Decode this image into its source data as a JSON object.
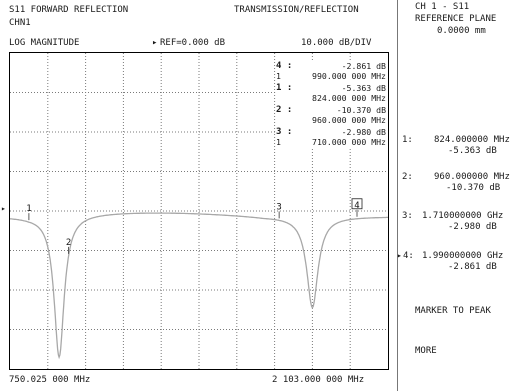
{
  "header": {
    "measurement_title": "S11 FORWARD REFLECTION",
    "mode": "TRANSMISSION/REFLECTION",
    "channel": "CHN1",
    "format": "LOG MAGNITUDE",
    "reference_marker": "▸",
    "reference": "REF=0.000 dB",
    "scale": "10.000 dB/DIV"
  },
  "marker_table": [
    {
      "id": "4 :",
      "value": "-2.861 dB",
      "prefix": "1",
      "freq": "990.000 000 MHz"
    },
    {
      "id": "1 :",
      "value": "-5.363 dB",
      "prefix": "",
      "freq": "824.000 000 MHz"
    },
    {
      "id": "2 :",
      "value": "-10.370 dB",
      "prefix": "",
      "freq": "960.000 000 MHz"
    },
    {
      "id": "3 :",
      "value": "-2.980 dB",
      "prefix": "1",
      "freq": "710.000 000 MHz"
    }
  ],
  "plot": {
    "start_freq": "750.025 000 MHz",
    "stop_freq": "2 103.000 000 MHz",
    "reference_arrow": "▸",
    "marker_labels": [
      {
        "label": "1",
        "frac": 0.05,
        "active": false
      },
      {
        "label": "2",
        "frac": 0.155,
        "active": false
      },
      {
        "label": "3",
        "frac": 0.712,
        "active": false
      },
      {
        "label": "4",
        "frac": 0.918,
        "active": true
      }
    ]
  },
  "right_panel": {
    "channel_title": "CH 1 - S11",
    "reference_plane_label": "REFERENCE PLANE",
    "reference_plane_value": "0.0000 mm",
    "marker_readouts": [
      {
        "label": "1:",
        "freq": "824.000000 MHz",
        "value": "-5.363 dB",
        "active": false
      },
      {
        "label": "2:",
        "freq": "960.000000 MHz",
        "value": "-10.370 dB",
        "active": false
      },
      {
        "label": "3:",
        "freq": "1.710000000 GHz",
        "value": "-2.980 dB",
        "active": false
      },
      {
        "label": "4:",
        "freq": "1.990000000 GHz",
        "value": "-2.861 dB",
        "active": true
      }
    ],
    "active_indicator": "▸",
    "softkeys": [
      "MARKER TO PEAK",
      "MORE"
    ]
  }
}
